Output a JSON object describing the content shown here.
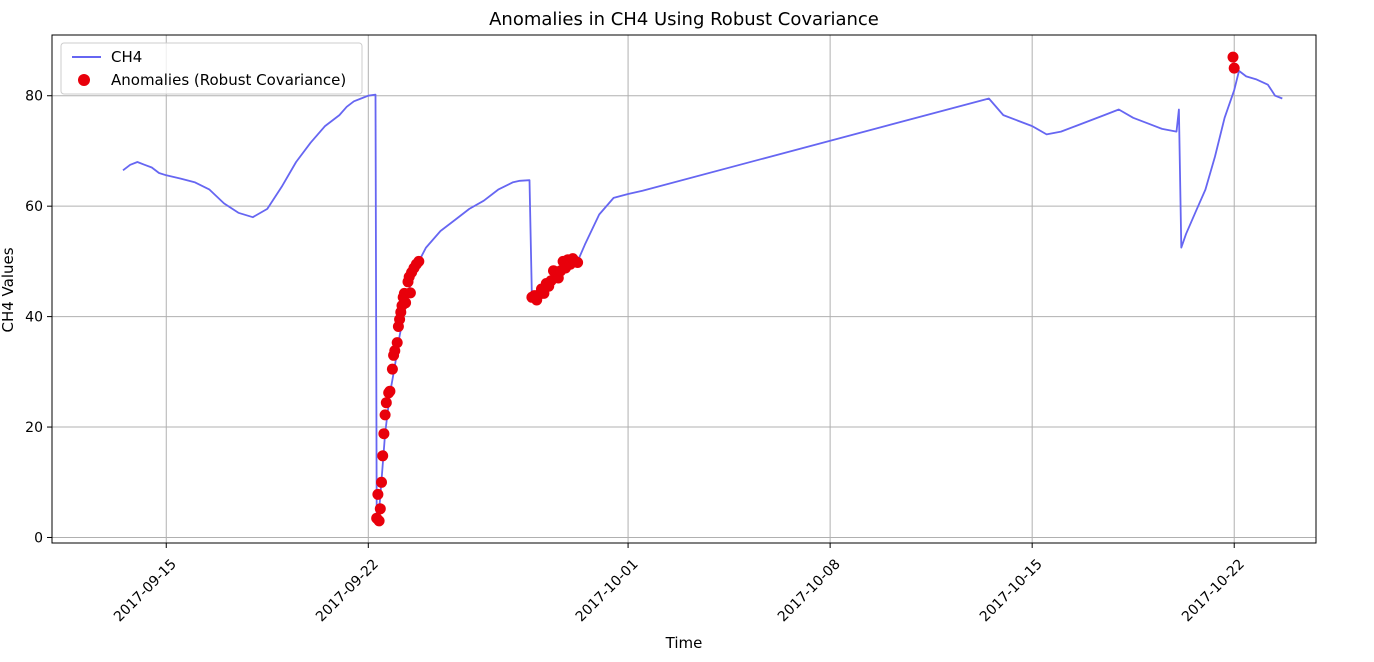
{
  "chart_data": {
    "type": "line",
    "title": "Anomalies in CH4 Using Robust Covariance",
    "xlabel": "Time",
    "ylabel": "CH4 Values",
    "x_axis_type": "date",
    "xlim": [
      "2017-09-11T01:00",
      "2017-10-24T20:00"
    ],
    "ylim": [
      -1,
      91
    ],
    "grid": true,
    "legend_position": "top-left",
    "x_ticks": [
      "2017-09-15",
      "2017-09-22",
      "2017-10-01",
      "2017-10-08",
      "2017-10-15",
      "2017-10-22"
    ],
    "y_ticks": [
      0,
      20,
      40,
      60,
      80
    ],
    "colors": {
      "line": "#6666f2",
      "anomaly": "#e8000b",
      "grid": "#b0b0b0"
    },
    "series": [
      {
        "name": "CH4",
        "kind": "line",
        "points": [
          [
            "2017-09-13T12:00",
            66.5
          ],
          [
            "2017-09-13T18:00",
            67.5
          ],
          [
            "2017-09-14T00:00",
            68.0
          ],
          [
            "2017-09-14T06:00",
            67.5
          ],
          [
            "2017-09-14T12:00",
            67.0
          ],
          [
            "2017-09-14T18:00",
            66.0
          ],
          [
            "2017-09-15T00:00",
            65.6
          ],
          [
            "2017-09-15T12:00",
            65.0
          ],
          [
            "2017-09-16T00:00",
            64.3
          ],
          [
            "2017-09-16T12:00",
            63.0
          ],
          [
            "2017-09-17T00:00",
            60.5
          ],
          [
            "2017-09-17T12:00",
            58.8
          ],
          [
            "2017-09-18T00:00",
            58.0
          ],
          [
            "2017-09-18T12:00",
            59.5
          ],
          [
            "2017-09-19T00:00",
            63.5
          ],
          [
            "2017-09-19T12:00",
            68.0
          ],
          [
            "2017-09-20T00:00",
            71.5
          ],
          [
            "2017-09-20T12:00",
            74.5
          ],
          [
            "2017-09-21T00:00",
            76.5
          ],
          [
            "2017-09-21T06:00",
            78.0
          ],
          [
            "2017-09-21T12:00",
            79.0
          ],
          [
            "2017-09-21T18:00",
            79.5
          ],
          [
            "2017-09-22T00:00",
            80.0
          ],
          [
            "2017-09-22T06:00",
            80.2
          ],
          [
            "2017-09-22T07:00",
            4.0
          ],
          [
            "2017-09-22T08:00",
            2.5
          ],
          [
            "2017-09-22T10:00",
            7.5
          ],
          [
            "2017-09-22T14:00",
            18.8
          ],
          [
            "2017-09-22T18:00",
            26.0
          ],
          [
            "2017-09-22T22:00",
            31.0
          ],
          [
            "2017-09-23T02:00",
            36.5
          ],
          [
            "2017-09-23T06:00",
            41.0
          ],
          [
            "2017-09-23T10:00",
            45.0
          ],
          [
            "2017-09-23T14:00",
            48.0
          ],
          [
            "2017-09-23T18:00",
            50.0
          ],
          [
            "2017-09-24T00:00",
            52.5
          ],
          [
            "2017-09-24T12:00",
            55.5
          ],
          [
            "2017-09-25T00:00",
            57.5
          ],
          [
            "2017-09-25T12:00",
            59.5
          ],
          [
            "2017-09-26T00:00",
            61.0
          ],
          [
            "2017-09-26T12:00",
            63.0
          ],
          [
            "2017-09-27T00:00",
            64.3
          ],
          [
            "2017-09-27T06:00",
            64.6
          ],
          [
            "2017-09-27T14:00",
            64.7
          ],
          [
            "2017-09-27T16:00",
            43.5
          ],
          [
            "2017-09-28T00:00",
            44.5
          ],
          [
            "2017-09-28T08:00",
            46.5
          ],
          [
            "2017-09-28T16:00",
            48.5
          ],
          [
            "2017-09-29T00:00",
            50.0
          ],
          [
            "2017-09-29T06:00",
            50.0
          ],
          [
            "2017-09-29T12:00",
            53.0
          ],
          [
            "2017-09-30T00:00",
            58.5
          ],
          [
            "2017-09-30T12:00",
            61.5
          ],
          [
            "2017-10-01T00:00",
            62.2
          ],
          [
            "2017-10-01T06:00",
            62.5
          ],
          [
            "2017-10-01T12:00",
            62.8
          ],
          [
            "2017-10-13T12:00",
            79.5
          ],
          [
            "2017-10-14T00:00",
            76.5
          ],
          [
            "2017-10-14T12:00",
            75.5
          ],
          [
            "2017-10-15T00:00",
            74.5
          ],
          [
            "2017-10-15T12:00",
            73.0
          ],
          [
            "2017-10-16T00:00",
            73.5
          ],
          [
            "2017-10-16T12:00",
            74.5
          ],
          [
            "2017-10-17T00:00",
            75.5
          ],
          [
            "2017-10-17T12:00",
            76.5
          ],
          [
            "2017-10-18T00:00",
            77.5
          ],
          [
            "2017-10-18T12:00",
            76.0
          ],
          [
            "2017-10-19T00:00",
            75.0
          ],
          [
            "2017-10-19T12:00",
            74.0
          ],
          [
            "2017-10-20T00:00",
            73.5
          ],
          [
            "2017-10-20T02:00",
            77.5
          ],
          [
            "2017-10-20T04:00",
            52.5
          ],
          [
            "2017-10-20T08:00",
            55.0
          ],
          [
            "2017-10-20T16:00",
            59.0
          ],
          [
            "2017-10-21T00:00",
            63.0
          ],
          [
            "2017-10-21T08:00",
            69.0
          ],
          [
            "2017-10-21T16:00",
            76.0
          ],
          [
            "2017-10-22T00:00",
            81.0
          ],
          [
            "2017-10-22T04:00",
            84.5
          ],
          [
            "2017-10-22T10:00",
            83.5
          ],
          [
            "2017-10-22T18:00",
            83.0
          ],
          [
            "2017-10-23T04:00",
            82.0
          ],
          [
            "2017-10-23T10:00",
            80.0
          ],
          [
            "2017-10-23T16:00",
            79.5
          ]
        ]
      },
      {
        "name": "Anomalies (Robust Covariance)",
        "kind": "scatter",
        "points": [
          [
            "2017-09-22T07:00",
            3.5
          ],
          [
            "2017-09-22T08:00",
            7.8
          ],
          [
            "2017-09-22T09:00",
            3.0
          ],
          [
            "2017-09-22T10:00",
            5.2
          ],
          [
            "2017-09-22T11:00",
            10.0
          ],
          [
            "2017-09-22T12:00",
            14.8
          ],
          [
            "2017-09-22T13:00",
            18.8
          ],
          [
            "2017-09-22T14:00",
            22.2
          ],
          [
            "2017-09-22T15:00",
            24.4
          ],
          [
            "2017-09-22T17:00",
            26.2
          ],
          [
            "2017-09-22T18:00",
            26.5
          ],
          [
            "2017-09-22T20:00",
            30.5
          ],
          [
            "2017-09-22T21:00",
            33.0
          ],
          [
            "2017-09-22T22:00",
            33.8
          ],
          [
            "2017-09-23T00:00",
            35.3
          ],
          [
            "2017-09-23T01:00",
            38.2
          ],
          [
            "2017-09-23T02:00",
            39.5
          ],
          [
            "2017-09-23T03:00",
            40.8
          ],
          [
            "2017-09-23T04:00",
            42.0
          ],
          [
            "2017-09-23T05:00",
            43.5
          ],
          [
            "2017-09-23T06:00",
            44.2
          ],
          [
            "2017-09-23T07:00",
            42.5
          ],
          [
            "2017-09-23T09:00",
            46.3
          ],
          [
            "2017-09-23T10:00",
            47.2
          ],
          [
            "2017-09-23T11:00",
            44.3
          ],
          [
            "2017-09-23T12:00",
            48.0
          ],
          [
            "2017-09-23T14:00",
            48.8
          ],
          [
            "2017-09-23T16:00",
            49.5
          ],
          [
            "2017-09-23T18:00",
            50.0
          ],
          [
            "2017-09-27T16:00",
            43.5
          ],
          [
            "2017-09-27T18:00",
            43.8
          ],
          [
            "2017-09-27T20:00",
            43.0
          ],
          [
            "2017-09-27T22:00",
            44.0
          ],
          [
            "2017-09-28T00:00",
            45.0
          ],
          [
            "2017-09-28T02:00",
            44.2
          ],
          [
            "2017-09-28T04:00",
            46.0
          ],
          [
            "2017-09-28T06:00",
            45.5
          ],
          [
            "2017-09-28T08:00",
            46.5
          ],
          [
            "2017-09-28T10:00",
            48.3
          ],
          [
            "2017-09-28T12:00",
            47.3
          ],
          [
            "2017-09-28T14:00",
            47.0
          ],
          [
            "2017-09-28T16:00",
            48.3
          ],
          [
            "2017-09-28T18:00",
            50.0
          ],
          [
            "2017-09-28T20:00",
            48.8
          ],
          [
            "2017-09-28T22:00",
            50.3
          ],
          [
            "2017-09-29T00:00",
            49.5
          ],
          [
            "2017-09-29T02:00",
            50.5
          ],
          [
            "2017-09-29T04:00",
            50.0
          ],
          [
            "2017-09-29T06:00",
            49.8
          ],
          [
            "2017-10-21T23:00",
            87.0
          ],
          [
            "2017-10-22T00:00",
            85.0
          ]
        ]
      }
    ]
  }
}
